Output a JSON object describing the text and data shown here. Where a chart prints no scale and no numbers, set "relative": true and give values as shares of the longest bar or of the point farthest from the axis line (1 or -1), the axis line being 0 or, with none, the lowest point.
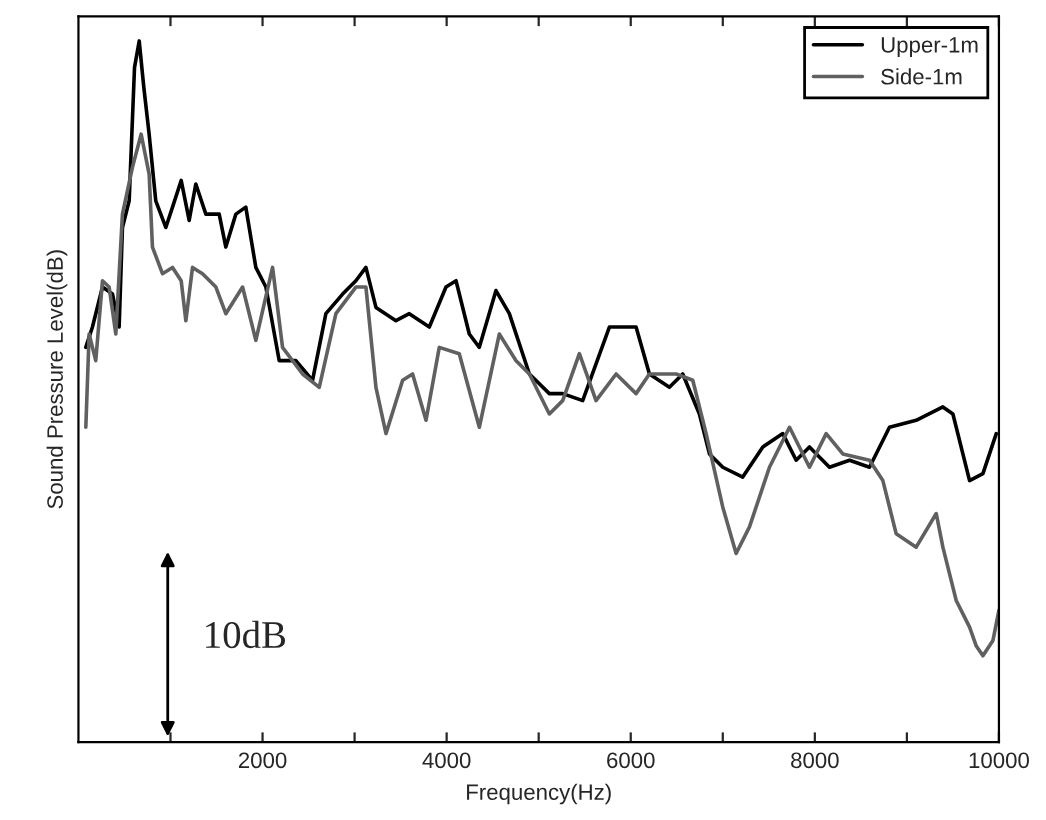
{
  "chart_data": {
    "type": "line",
    "relative": true,
    "xlabel": "Frequency(Hz)",
    "ylabel": "Sound Pressure Level(dB)",
    "annotations": [
      "10dB"
    ],
    "legend": "top right",
    "grid": false,
    "xlim": [
      0,
      10000
    ],
    "xticks": [
      {
        "value": 1000,
        "label": null
      },
      2000,
      {
        "value": 3000,
        "label": null
      },
      4000,
      {
        "value": 5000,
        "label": null
      },
      6000,
      {
        "value": 7000,
        "label": null
      },
      8000,
      {
        "value": 9000,
        "label": null
      },
      10000
    ],
    "series": [
      {
        "name": "Upper-1m",
        "color": "#000000",
        "x": [
          80,
          152,
          261,
          370,
          442,
          478,
          551,
          609,
          660,
          710,
          768,
          840,
          949,
          1022,
          1116,
          1203,
          1275,
          1384,
          1529,
          1601,
          1710,
          1818,
          1927,
          2036,
          2181,
          2362,
          2543,
          2688,
          2870,
          3014,
          3123,
          3232,
          3449,
          3594,
          3812,
          3993,
          4102,
          4246,
          4355,
          4536,
          4681,
          4899,
          5116,
          5261,
          5478,
          5768,
          6058,
          6203,
          6420,
          6565,
          6746,
          6855,
          7000,
          7217,
          7435,
          7652,
          7797,
          7942,
          8159,
          8377,
          8594,
          8811,
          9101,
          9391,
          9500,
          9681,
          9826,
          9971
        ],
        "values": [
          0.563,
          0.592,
          0.649,
          0.639,
          0.592,
          0.734,
          0.772,
          0.962,
          1,
          0.934,
          0.867,
          0.772,
          0.734,
          0.763,
          0.801,
          0.744,
          0.796,
          0.753,
          0.753,
          0.706,
          0.753,
          0.763,
          0.677,
          0.649,
          0.544,
          0.544,
          0.516,
          0.611,
          0.639,
          0.658,
          0.677,
          0.62,
          0.601,
          0.611,
          0.592,
          0.649,
          0.658,
          0.582,
          0.563,
          0.644,
          0.611,
          0.525,
          0.497,
          0.497,
          0.487,
          0.592,
          0.592,
          0.525,
          0.506,
          0.525,
          0.468,
          0.411,
          0.392,
          0.378,
          0.421,
          0.44,
          0.402,
          0.421,
          0.392,
          0.402,
          0.392,
          0.449,
          0.459,
          0.478,
          0.468,
          0.373,
          0.383,
          0.44
        ]
      },
      {
        "name": "Side-1m",
        "color": "#606060",
        "x": [
          80,
          116,
          188,
          261,
          333,
          406,
          478,
          587,
          681,
          768,
          804,
          913,
          1022,
          1116,
          1167,
          1239,
          1348,
          1493,
          1601,
          1783,
          1927,
          2109,
          2217,
          2435,
          2616,
          2797,
          3014,
          3123,
          3232,
          3341,
          3522,
          3630,
          3776,
          3920,
          4137,
          4355,
          4572,
          4754,
          4899,
          5116,
          5261,
          5442,
          5623,
          5841,
          6058,
          6203,
          6493,
          6674,
          6819,
          7000,
          7145,
          7290,
          7507,
          7725,
          7942,
          8123,
          8304,
          8594,
          8739,
          8884,
          9101,
          9319,
          9391,
          9536,
          9681,
          9754,
          9826,
          9935,
          10000
        ],
        "values": [
          0.449,
          0.582,
          0.544,
          0.658,
          0.649,
          0.582,
          0.753,
          0.82,
          0.867,
          0.81,
          0.706,
          0.668,
          0.677,
          0.658,
          0.601,
          0.677,
          0.668,
          0.649,
          0.611,
          0.649,
          0.573,
          0.677,
          0.563,
          0.525,
          0.506,
          0.611,
          0.649,
          0.649,
          0.506,
          0.44,
          0.516,
          0.525,
          0.459,
          0.563,
          0.554,
          0.449,
          0.582,
          0.544,
          0.525,
          0.468,
          0.487,
          0.554,
          0.487,
          0.525,
          0.497,
          0.525,
          0.525,
          0.516,
          0.44,
          0.335,
          0.269,
          0.307,
          0.392,
          0.449,
          0.392,
          0.44,
          0.411,
          0.402,
          0.373,
          0.297,
          0.278,
          0.326,
          0.278,
          0.202,
          0.164,
          0.137,
          0.123,
          0.145,
          0.188
        ]
      }
    ]
  }
}
